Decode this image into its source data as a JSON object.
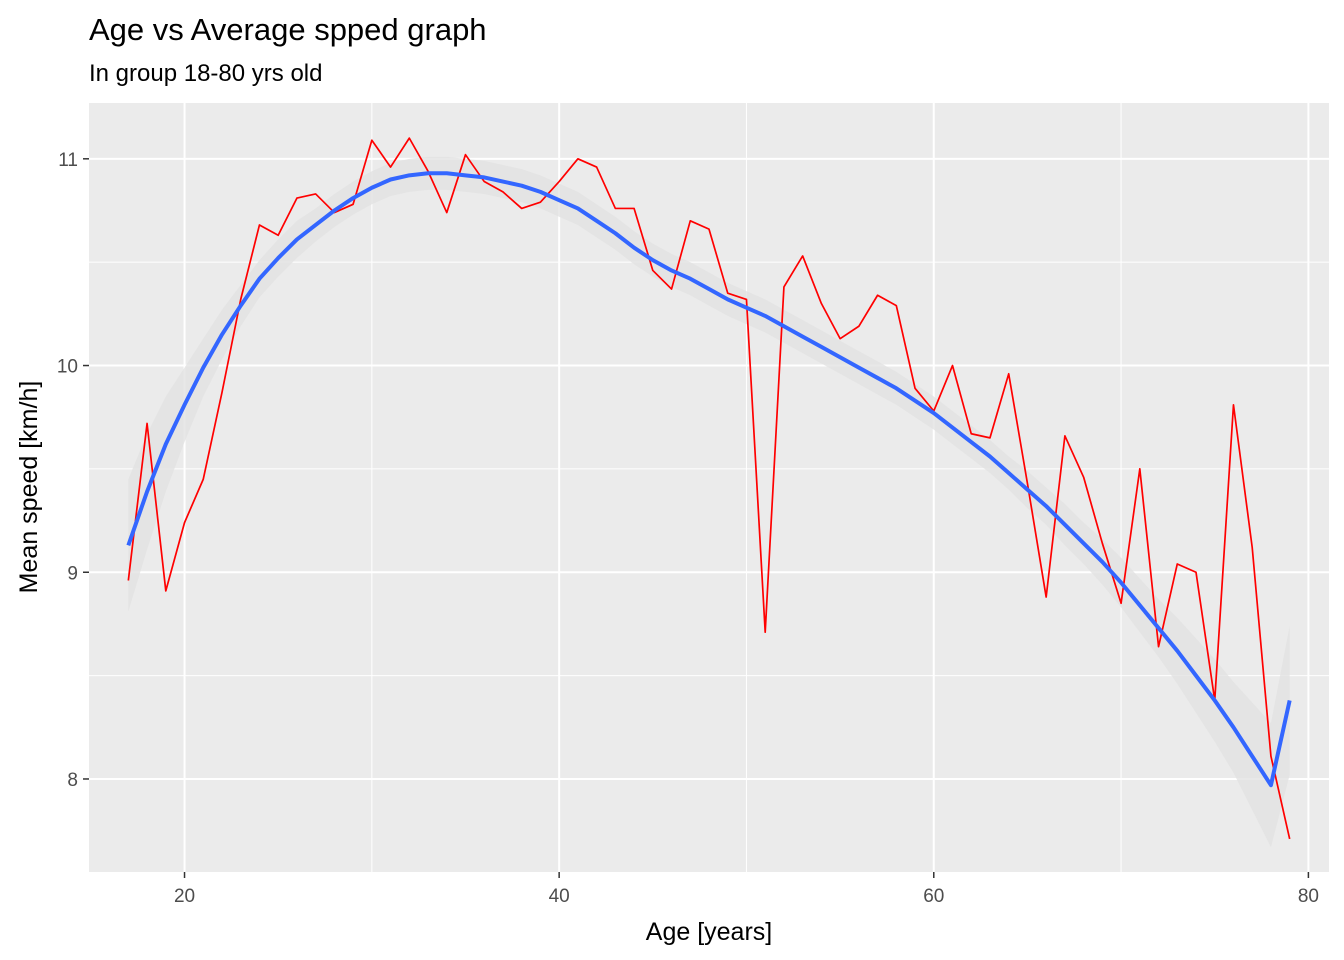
{
  "chart_data": {
    "type": "line",
    "title": "Age vs Average spped graph",
    "subtitle": "In group 18-80 yrs old",
    "xlabel": "Age [years]",
    "ylabel": "Mean speed [km/h]",
    "xlim": [
      14.9,
      81.1
    ],
    "ylim": [
      7.55,
      11.27
    ],
    "x_ticks": [
      20,
      40,
      60,
      80
    ],
    "y_ticks": [
      8,
      9,
      10,
      11
    ],
    "grid": true,
    "legend": "none",
    "colors": {
      "panel_background": "#ebebeb",
      "grid": "#ffffff",
      "observed": "#ff0000",
      "smooth": "#3366ff",
      "ribbon": "#e2e2e2"
    },
    "series": [
      {
        "type": "line",
        "x": [
          17,
          18,
          19,
          20,
          21,
          22,
          23,
          24,
          25,
          26,
          27,
          28,
          29,
          30,
          31,
          32,
          33,
          34,
          35,
          36,
          37,
          38,
          39,
          40,
          41,
          42,
          43,
          44,
          45,
          46,
          47,
          48,
          49,
          50,
          51,
          52,
          53,
          54,
          55,
          56,
          57,
          58,
          59,
          60,
          61,
          62,
          63,
          64,
          65,
          66,
          67,
          68,
          69,
          70,
          71,
          72,
          73,
          74,
          75,
          76,
          77,
          78,
          79
        ],
        "values": [
          8.96,
          9.72,
          8.91,
          9.24,
          9.45,
          9.87,
          10.32,
          10.68,
          10.63,
          10.81,
          10.83,
          10.74,
          10.78,
          11.09,
          10.96,
          11.1,
          10.94,
          10.74,
          11.02,
          10.89,
          10.84,
          10.76,
          10.79,
          10.89,
          11.0,
          10.96,
          10.76,
          10.76,
          10.46,
          10.37,
          10.7,
          10.66,
          10.35,
          10.32,
          8.71,
          10.38,
          10.53,
          10.3,
          10.13,
          10.19,
          10.34,
          10.29,
          9.89,
          9.78,
          10.0,
          9.67,
          9.65,
          9.96,
          9.43,
          8.88,
          9.66,
          9.46,
          9.14,
          8.85,
          9.5,
          8.64,
          9.04,
          9.0,
          8.38,
          9.81,
          9.12,
          8.11,
          7.71
        ]
      },
      {
        "type": "smooth",
        "x": [
          17,
          18,
          19,
          20,
          21,
          22,
          23,
          24,
          25,
          26,
          27,
          28,
          29,
          30,
          31,
          32,
          33,
          34,
          35,
          36,
          37,
          38,
          39,
          40,
          41,
          42,
          43,
          44,
          45,
          46,
          47,
          48,
          49,
          50,
          51,
          52,
          53,
          54,
          55,
          56,
          57,
          58,
          59,
          60,
          61,
          62,
          63,
          64,
          65,
          66,
          67,
          68,
          69,
          70,
          71,
          72,
          73,
          74,
          75,
          76,
          77,
          78,
          79
        ],
        "values": [
          9.13,
          9.39,
          9.62,
          9.81,
          9.99,
          10.15,
          10.29,
          10.42,
          10.52,
          10.61,
          10.68,
          10.75,
          10.81,
          10.86,
          10.9,
          10.92,
          10.93,
          10.93,
          10.92,
          10.91,
          10.89,
          10.87,
          10.84,
          10.8,
          10.76,
          10.7,
          10.64,
          10.57,
          10.51,
          10.46,
          10.42,
          10.37,
          10.32,
          10.28,
          10.24,
          10.19,
          10.14,
          10.09,
          10.04,
          9.99,
          9.94,
          9.89,
          9.83,
          9.77,
          9.7,
          9.63,
          9.56,
          9.48,
          9.4,
          9.32,
          9.23,
          9.14,
          9.05,
          8.95,
          8.84,
          8.73,
          8.62,
          8.5,
          8.38,
          8.25,
          8.11,
          7.97,
          8.38
        ],
        "ribbon_halfwidth": [
          0.32,
          0.28,
          0.23,
          0.18,
          0.14,
          0.12,
          0.1,
          0.09,
          0.09,
          0.09,
          0.08,
          0.08,
          0.08,
          0.08,
          0.08,
          0.08,
          0.08,
          0.08,
          0.08,
          0.08,
          0.08,
          0.08,
          0.08,
          0.08,
          0.08,
          0.08,
          0.08,
          0.08,
          0.08,
          0.08,
          0.08,
          0.08,
          0.08,
          0.08,
          0.08,
          0.08,
          0.08,
          0.08,
          0.08,
          0.08,
          0.08,
          0.08,
          0.08,
          0.08,
          0.08,
          0.08,
          0.08,
          0.08,
          0.09,
          0.09,
          0.1,
          0.1,
          0.11,
          0.12,
          0.13,
          0.14,
          0.16,
          0.18,
          0.2,
          0.22,
          0.26,
          0.3,
          0.36
        ]
      }
    ]
  }
}
